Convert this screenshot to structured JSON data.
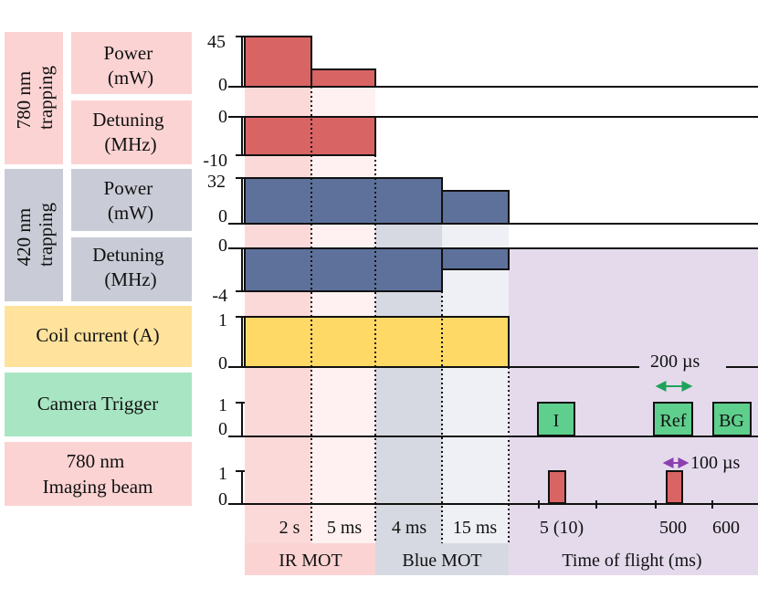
{
  "labels": {
    "trap780": {
      "line1": "780 nm",
      "line2": "trapping"
    },
    "trap420": {
      "line1": "420 nm",
      "line2": "trapping"
    },
    "power": {
      "line1": "Power",
      "line2": "(mW)"
    },
    "detuning": {
      "line1": "Detuning",
      "line2": "(MHz)"
    },
    "coil": "Coil current (A)",
    "camera": "Camera Trigger",
    "imaging": {
      "line1": "780 nm",
      "line2": "Imaging beam"
    }
  },
  "ticks": {
    "p780_top": "45",
    "p780_bottom": "0",
    "d780_top": "0",
    "d780_bottom": "-10",
    "p420_top": "32",
    "p420_bottom": "0",
    "d420_top": "0",
    "d420_bottom": "-4",
    "coil_top": "1",
    "coil_bottom": "0",
    "cam_top": "1",
    "cam_bottom": "0",
    "img_top": "1",
    "img_bottom": "0"
  },
  "annotations": {
    "pulse_200": "200 µs",
    "pulse_100": "100 µs",
    "cam_pulses": [
      "I",
      "Ref",
      "BG"
    ]
  },
  "timeline": {
    "durations": [
      "2 s",
      "5 ms",
      "4 ms",
      "15 ms"
    ],
    "tof_ticks": [
      "5 (10)",
      "500",
      "600"
    ],
    "phases": [
      "IR MOT",
      "Blue MOT",
      "Time of flight (ms)"
    ]
  },
  "colors": {
    "red_bar": "#d96464",
    "blue_bar": "#5e719b",
    "yellow_bar": "#ffd966",
    "green_pulse": "#5fcf8d",
    "label_pink": "#fcd3d3",
    "label_gray": "#c9ccd6",
    "label_yellow": "#ffe29c",
    "label_green": "#a8e6c3",
    "ir_phase": "#fcd9d9",
    "blue_phase": "#d6d9e2",
    "tof_phase": "#e4daec"
  }
}
